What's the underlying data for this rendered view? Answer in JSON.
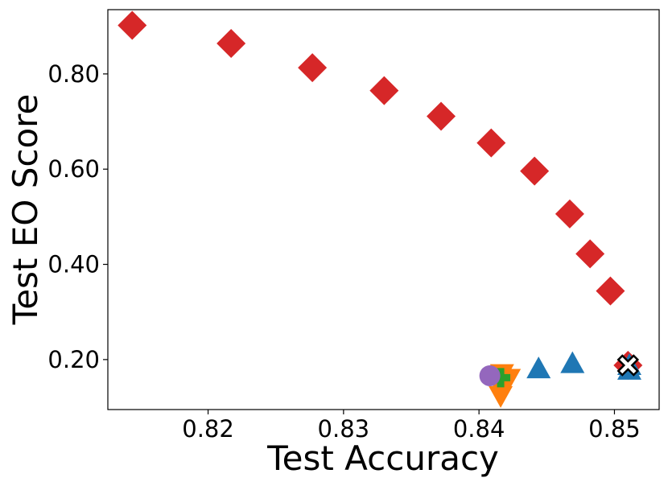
{
  "chart_data": {
    "type": "scatter",
    "title": "",
    "xlabel": "Test Accuracy",
    "ylabel": "Test EO Score",
    "xlim": [
      0.8126,
      0.8533
    ],
    "ylim": [
      0.095,
      0.935
    ],
    "xticks": [
      0.82,
      0.83,
      0.84,
      0.85
    ],
    "xtick_labels": [
      "0.82",
      "0.83",
      "0.84",
      "0.85"
    ],
    "yticks": [
      0.2,
      0.4,
      0.6,
      0.8
    ],
    "ytick_labels": [
      "0.20",
      "0.40",
      "0.60",
      "0.80"
    ],
    "grid": false,
    "legend": "none",
    "series": [
      {
        "marker": "diamond",
        "color": "#d62728",
        "points": [
          [
            0.8144,
            0.902
          ],
          [
            0.8217,
            0.864
          ],
          [
            0.8277,
            0.813
          ],
          [
            0.833,
            0.765
          ],
          [
            0.8372,
            0.711
          ],
          [
            0.8409,
            0.655
          ],
          [
            0.8441,
            0.596
          ],
          [
            0.8467,
            0.506
          ],
          [
            0.8482,
            0.422
          ],
          [
            0.8497,
            0.344
          ],
          [
            0.851,
            0.188
          ]
        ]
      },
      {
        "marker": "triangle-up",
        "color": "#1f77b4",
        "points": [
          [
            0.8444,
            0.181
          ],
          [
            0.8469,
            0.192
          ],
          [
            0.8511,
            0.178
          ],
          [
            0.8511,
            0.188
          ]
        ]
      },
      {
        "marker": "triangle-down",
        "color": "#ff7f0e",
        "points": [
          [
            0.8417,
            0.17
          ],
          [
            0.8422,
            0.16
          ],
          [
            0.8418,
            0.148
          ],
          [
            0.8417,
            0.136
          ],
          [
            0.8416,
            0.124
          ]
        ]
      },
      {
        "marker": "plus",
        "color": "#2ca02c",
        "points": [
          [
            0.8416,
            0.162
          ]
        ]
      },
      {
        "marker": "circle",
        "color": "#9467bd",
        "points": [
          [
            0.8408,
            0.166
          ]
        ]
      },
      {
        "marker": "x-filled",
        "color": "#ffffff",
        "edge": "#000000",
        "points": [
          [
            0.851,
            0.188
          ]
        ]
      }
    ]
  }
}
